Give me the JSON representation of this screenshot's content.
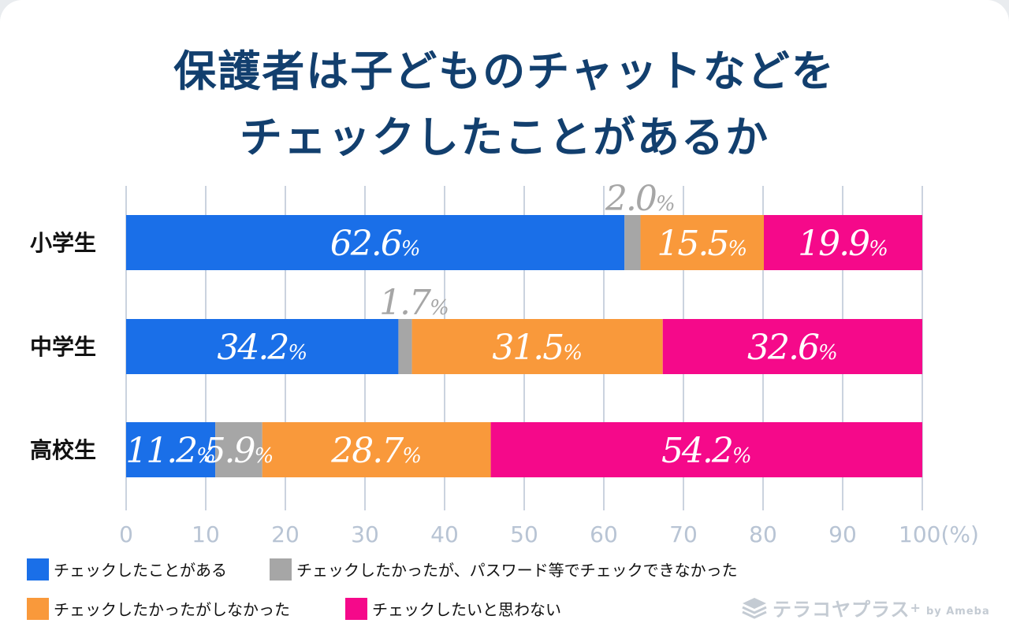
{
  "title_line1": "保護者は子どものチャットなどを",
  "title_line2": "チェックしたことがあるか",
  "chart_data": {
    "type": "bar",
    "orientation": "horizontal",
    "stacked": true,
    "title": "保護者は子どものチャットなどを チェックしたことがあるか",
    "categories": [
      "小学生",
      "中学生",
      "高校生"
    ],
    "series": [
      {
        "name": "チェックしたことがある",
        "color": "#1a6fe8",
        "values": [
          62.6,
          34.2,
          11.2
        ]
      },
      {
        "name": "チェックしたかったが、パスワード等でチェックできなかった",
        "color": "#a6a6a6",
        "values": [
          2.0,
          1.7,
          5.9
        ]
      },
      {
        "name": "チェックしたかったがしなかった",
        "color": "#f9993b",
        "values": [
          15.5,
          31.5,
          28.7
        ]
      },
      {
        "name": "チェックしたいと思わない",
        "color": "#f5098a",
        "values": [
          19.9,
          32.6,
          54.2
        ]
      }
    ],
    "labels": [
      [
        "62.6",
        "2.0",
        "15.5",
        "19.9"
      ],
      [
        "34.2",
        "1.7",
        "31.5",
        "32.6"
      ],
      [
        "11.2",
        "5.9",
        "28.7",
        "54.2"
      ]
    ],
    "pct_symbol": "%",
    "xlim": [
      0,
      100
    ],
    "xticks": [
      "0",
      "10",
      "20",
      "30",
      "40",
      "50",
      "60",
      "70",
      "80",
      "90",
      "100(%)"
    ],
    "grid": true,
    "legend_position": "bottom"
  },
  "legend": [
    {
      "label": "チェックしたことがある",
      "color": "#1a6fe8"
    },
    {
      "label": "チェックしたかったが、パスワード等でチェックできなかった",
      "color": "#a6a6a6"
    },
    {
      "label": "チェックしたかったがしなかった",
      "color": "#f9993b"
    },
    {
      "label": "チェックしたいと思わない",
      "color": "#f5098a"
    }
  ],
  "brand": {
    "name": "テラコヤプラス",
    "plus": "+",
    "by": "by Ameba"
  }
}
